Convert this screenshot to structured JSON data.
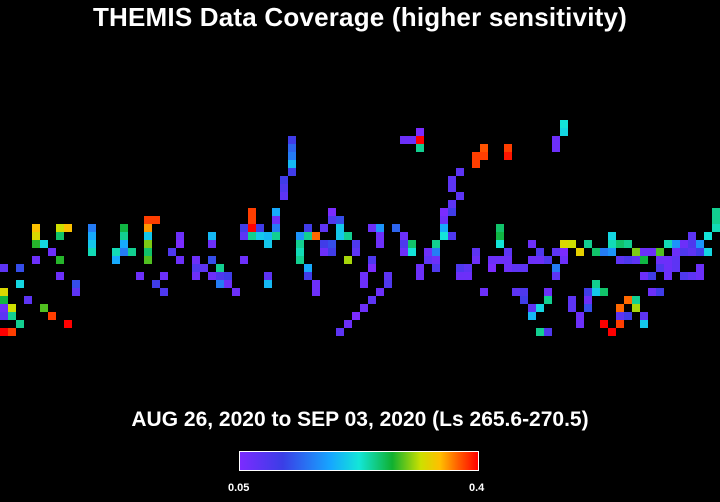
{
  "chart_data": {
    "type": "heatmap",
    "title": "THEMIS Data Coverage (higher sensitivity)",
    "subtitle": "AUG 26, 2020 to SEP 03, 2020 (Ls 265.6-270.5)",
    "colorbar": {
      "min_label": "0.05",
      "max_label": "0.4",
      "range": [
        0.05,
        0.4
      ],
      "colors": [
        "#7b2bff",
        "#3a3ee6",
        "#16a6ff",
        "#13e6d8",
        "#10b030",
        "#cde000",
        "#ffbf00",
        "#ff5a00",
        "#ff0000"
      ]
    },
    "grid": {
      "columns": 90,
      "rows": 50
    },
    "cells": [
      [
        0,
        38,
        0.06
      ],
      [
        0,
        39,
        0.07
      ],
      [
        0,
        37,
        0.22
      ],
      [
        0,
        36,
        0.28
      ],
      [
        0,
        33,
        0.07
      ],
      [
        0,
        41,
        0.4
      ],
      [
        1,
        41,
        0.37
      ],
      [
        1,
        39,
        0.2
      ],
      [
        1,
        38,
        0.27
      ],
      [
        2,
        40,
        0.2
      ],
      [
        2,
        35,
        0.17
      ],
      [
        2,
        33,
        0.1
      ],
      [
        3,
        37,
        0.07
      ],
      [
        4,
        29,
        0.28
      ],
      [
        4,
        30,
        0.23
      ],
      [
        4,
        28,
        0.31
      ],
      [
        4,
        32,
        0.06
      ],
      [
        5,
        30,
        0.17
      ],
      [
        5,
        38,
        0.24
      ],
      [
        6,
        39,
        0.37
      ],
      [
        6,
        31,
        0.06
      ],
      [
        7,
        32,
        0.23
      ],
      [
        7,
        34,
        0.06
      ],
      [
        7,
        28,
        0.27
      ],
      [
        7,
        29,
        0.21
      ],
      [
        8,
        28,
        0.31
      ],
      [
        8,
        40,
        0.4
      ],
      [
        9,
        35,
        0.1
      ],
      [
        9,
        36,
        0.07
      ],
      [
        11,
        28,
        0.12
      ],
      [
        11,
        29,
        0.14
      ],
      [
        11,
        30,
        0.16
      ],
      [
        11,
        31,
        0.19
      ],
      [
        14,
        32,
        0.14
      ],
      [
        14,
        31,
        0.19
      ],
      [
        15,
        31,
        0.12
      ],
      [
        15,
        30,
        0.14
      ],
      [
        15,
        29,
        0.2
      ],
      [
        15,
        28,
        0.22
      ],
      [
        16,
        31,
        0.2
      ],
      [
        17,
        34,
        0.06
      ],
      [
        18,
        28,
        0.33
      ],
      [
        18,
        29,
        0.16
      ],
      [
        18,
        30,
        0.25
      ],
      [
        18,
        31,
        0.21
      ],
      [
        18,
        32,
        0.24
      ],
      [
        18,
        27,
        0.37
      ],
      [
        19,
        27,
        0.37
      ],
      [
        19,
        35,
        0.09
      ],
      [
        20,
        36,
        0.08
      ],
      [
        20,
        34,
        0.06
      ],
      [
        21,
        31,
        0.08
      ],
      [
        22,
        29,
        0.06
      ],
      [
        22,
        30,
        0.05
      ],
      [
        22,
        32,
        0.06
      ],
      [
        24,
        32,
        0.06
      ],
      [
        24,
        33,
        0.08
      ],
      [
        24,
        34,
        0.06
      ],
      [
        25,
        33,
        0.07
      ],
      [
        26,
        34,
        0.06
      ],
      [
        26,
        32,
        0.1
      ],
      [
        26,
        30,
        0.06
      ],
      [
        26,
        29,
        0.15
      ],
      [
        27,
        35,
        0.12
      ],
      [
        27,
        34,
        0.08
      ],
      [
        27,
        33,
        0.2
      ],
      [
        28,
        35,
        0.06
      ],
      [
        28,
        34,
        0.09
      ],
      [
        29,
        36,
        0.06
      ],
      [
        30,
        28,
        0.09
      ],
      [
        30,
        29,
        0.07
      ],
      [
        30,
        32,
        0.06
      ],
      [
        31,
        26,
        0.37
      ],
      [
        31,
        27,
        0.37
      ],
      [
        31,
        28,
        0.41
      ],
      [
        31,
        29,
        0.2
      ],
      [
        32,
        28,
        0.09
      ],
      [
        32,
        29,
        0.16
      ],
      [
        33,
        29,
        0.15
      ],
      [
        33,
        30,
        0.16
      ],
      [
        33,
        34,
        0.07
      ],
      [
        33,
        35,
        0.15
      ],
      [
        34,
        28,
        0.12
      ],
      [
        34,
        27,
        0.06
      ],
      [
        34,
        26,
        0.14
      ],
      [
        34,
        29,
        0.2
      ],
      [
        35,
        24,
        0.07
      ],
      [
        35,
        23,
        0.08
      ],
      [
        35,
        22,
        0.09
      ],
      [
        36,
        21,
        0.09
      ],
      [
        36,
        20,
        0.15
      ],
      [
        36,
        19,
        0.12
      ],
      [
        36,
        18,
        0.11
      ],
      [
        36,
        17,
        0.09
      ],
      [
        37,
        32,
        0.2
      ],
      [
        37,
        31,
        0.19
      ],
      [
        37,
        30,
        0.06
      ],
      [
        37,
        29,
        0.13
      ],
      [
        38,
        28,
        0.09
      ],
      [
        38,
        33,
        0.14
      ],
      [
        38,
        34,
        0.09
      ],
      [
        39,
        36,
        0.06
      ],
      [
        39,
        35,
        0.06
      ],
      [
        40,
        30,
        0.09
      ],
      [
        40,
        31,
        0.06
      ],
      [
        41,
        31,
        0.09
      ],
      [
        41,
        30,
        0.1
      ],
      [
        41,
        26,
        0.05
      ],
      [
        42,
        28,
        0.16
      ],
      [
        42,
        29,
        0.16
      ],
      [
        43,
        29,
        0.2
      ],
      [
        43,
        32,
        0.26
      ],
      [
        44,
        31,
        0.07
      ],
      [
        44,
        30,
        0.08
      ],
      [
        45,
        34,
        0.06
      ],
      [
        45,
        35,
        0.06
      ],
      [
        46,
        33,
        0.05
      ],
      [
        46,
        32,
        0.08
      ],
      [
        46,
        28,
        0.06
      ],
      [
        47,
        28,
        0.13
      ],
      [
        47,
        29,
        0.06
      ],
      [
        47,
        30,
        0.06
      ],
      [
        48,
        34,
        0.07
      ],
      [
        48,
        35,
        0.08
      ],
      [
        49,
        28,
        0.11
      ],
      [
        50,
        29,
        0.06
      ],
      [
        50,
        30,
        0.08
      ],
      [
        50,
        31,
        0.06
      ],
      [
        51,
        30,
        0.21
      ],
      [
        51,
        31,
        0.18
      ],
      [
        52,
        34,
        0.06
      ],
      [
        52,
        33,
        0.06
      ],
      [
        53,
        31,
        0.06
      ],
      [
        53,
        32,
        0.07
      ],
      [
        54,
        32,
        0.06
      ],
      [
        54,
        33,
        0.08
      ],
      [
        54,
        30,
        0.2
      ],
      [
        54,
        31,
        0.12
      ],
      [
        55,
        29,
        0.18
      ],
      [
        55,
        28,
        0.14
      ],
      [
        55,
        27,
        0.06
      ],
      [
        55,
        26,
        0.05
      ],
      [
        56,
        26,
        0.09
      ],
      [
        56,
        29,
        0.08
      ],
      [
        56,
        25,
        0.07
      ],
      [
        57,
        24,
        0.07
      ],
      [
        57,
        33,
        0.08
      ],
      [
        57,
        34,
        0.06
      ],
      [
        58,
        34,
        0.06
      ],
      [
        58,
        33,
        0.07
      ],
      [
        59,
        31,
        0.07
      ],
      [
        59,
        32,
        0.06
      ],
      [
        60,
        36,
        0.06
      ],
      [
        61,
        33,
        0.05
      ],
      [
        61,
        32,
        0.06
      ],
      [
        62,
        30,
        0.18
      ],
      [
        62,
        29,
        0.22
      ],
      [
        62,
        28,
        0.21
      ],
      [
        63,
        31,
        0.07
      ],
      [
        63,
        32,
        0.06
      ],
      [
        64,
        36,
        0.07
      ],
      [
        65,
        36,
        0.08
      ],
      [
        65,
        37,
        0.09
      ],
      [
        66,
        38,
        0.07
      ],
      [
        66,
        39,
        0.15
      ],
      [
        67,
        38,
        0.17
      ],
      [
        67,
        41,
        0.2
      ],
      [
        68,
        41,
        0.08
      ],
      [
        68,
        37,
        0.2
      ],
      [
        68,
        36,
        0.06
      ],
      [
        69,
        34,
        0.07
      ],
      [
        69,
        33,
        0.12
      ],
      [
        70,
        32,
        0.06
      ],
      [
        70,
        31,
        0.05
      ],
      [
        71,
        37,
        0.07
      ],
      [
        71,
        38,
        0.07
      ],
      [
        72,
        39,
        0.06
      ],
      [
        72,
        40,
        0.06
      ],
      [
        73,
        38,
        0.1
      ],
      [
        73,
        37,
        0.06
      ],
      [
        73,
        36,
        0.09
      ],
      [
        74,
        35,
        0.2
      ],
      [
        74,
        36,
        0.16
      ],
      [
        75,
        36,
        0.21
      ],
      [
        75,
        40,
        0.4
      ],
      [
        76,
        41,
        0.4
      ],
      [
        77,
        40,
        0.37
      ],
      [
        77,
        38,
        0.35
      ],
      [
        77,
        39,
        0.07
      ],
      [
        78,
        39,
        0.09
      ],
      [
        78,
        37,
        0.35
      ],
      [
        79,
        38,
        0.26
      ],
      [
        79,
        37,
        0.2
      ],
      [
        80,
        39,
        0.07
      ],
      [
        80,
        40,
        0.16
      ],
      [
        80,
        34,
        0.06
      ],
      [
        81,
        34,
        0.09
      ],
      [
        81,
        36,
        0.06
      ],
      [
        82,
        36,
        0.09
      ],
      [
        82,
        33,
        0.08
      ],
      [
        83,
        33,
        0.07
      ],
      [
        83,
        34,
        0.06
      ],
      [
        84,
        32,
        0.07
      ],
      [
        84,
        31,
        0.06
      ],
      [
        85,
        31,
        0.07
      ],
      [
        85,
        30,
        0.06
      ],
      [
        86,
        30,
        0.08
      ],
      [
        86,
        29,
        0.07
      ],
      [
        87,
        30,
        0.13
      ],
      [
        87,
        31,
        0.09
      ],
      [
        88,
        31,
        0.17
      ],
      [
        88,
        29,
        0.18
      ],
      [
        89,
        28,
        0.19
      ],
      [
        89,
        27,
        0.2
      ],
      [
        89,
        26,
        0.2
      ],
      [
        42,
        41,
        0.07
      ],
      [
        43,
        40,
        0.06
      ],
      [
        44,
        39,
        0.05
      ],
      [
        45,
        38,
        0.06
      ],
      [
        46,
        37,
        0.07
      ],
      [
        47,
        36,
        0.06
      ],
      [
        37,
        30,
        0.2
      ],
      [
        38,
        29,
        0.2
      ],
      [
        39,
        29,
        0.35
      ],
      [
        40,
        28,
        0.07
      ],
      [
        41,
        27,
        0.08
      ],
      [
        42,
        27,
        0.1
      ],
      [
        56,
        23,
        0.07
      ],
      [
        56,
        22,
        0.07
      ],
      [
        57,
        21,
        0.07
      ],
      [
        50,
        17,
        0.06
      ],
      [
        51,
        17,
        0.06
      ],
      [
        52,
        16,
        0.05
      ],
      [
        59,
        19,
        0.37
      ],
      [
        59,
        20,
        0.37
      ],
      [
        60,
        18,
        0.36
      ],
      [
        60,
        19,
        0.37
      ],
      [
        63,
        18,
        0.37
      ],
      [
        63,
        19,
        0.39
      ],
      [
        52,
        17,
        0.4
      ],
      [
        52,
        18,
        0.2
      ],
      [
        70,
        15,
        0.18
      ],
      [
        70,
        16,
        0.17
      ],
      [
        69,
        17,
        0.06
      ],
      [
        69,
        18,
        0.06
      ],
      [
        83,
        33,
        0.06
      ],
      [
        84,
        33,
        0.07
      ],
      [
        85,
        34,
        0.08
      ],
      [
        86,
        34,
        0.07
      ],
      [
        87,
        34,
        0.06
      ],
      [
        87,
        33,
        0.06
      ],
      [
        76,
        30,
        0.19
      ],
      [
        76,
        29,
        0.17
      ],
      [
        77,
        30,
        0.21
      ],
      [
        78,
        30,
        0.2
      ],
      [
        79,
        31,
        0.25
      ],
      [
        80,
        32,
        0.22
      ],
      [
        81,
        31,
        0.2
      ],
      [
        82,
        31,
        0.24
      ],
      [
        83,
        30,
        0.19
      ],
      [
        84,
        30,
        0.13
      ],
      [
        85,
        31,
        0.08
      ],
      [
        86,
        31,
        0.07
      ],
      [
        66,
        30,
        0.06
      ],
      [
        67,
        31,
        0.08
      ],
      [
        68,
        32,
        0.08
      ],
      [
        69,
        31,
        0.07
      ],
      [
        70,
        30,
        0.28
      ],
      [
        71,
        30,
        0.27
      ],
      [
        72,
        31,
        0.29
      ],
      [
        73,
        30,
        0.2
      ],
      [
        74,
        31,
        0.21
      ],
      [
        75,
        31,
        0.12
      ],
      [
        76,
        31,
        0.13
      ],
      [
        77,
        32,
        0.07
      ],
      [
        78,
        32,
        0.08
      ],
      [
        79,
        32,
        0.07
      ],
      [
        80,
        31,
        0.06
      ],
      [
        81,
        31,
        0.06
      ],
      [
        82,
        32,
        0.06
      ],
      [
        83,
        32,
        0.06
      ],
      [
        62,
        32,
        0.06
      ],
      [
        63,
        33,
        0.06
      ],
      [
        64,
        33,
        0.07
      ],
      [
        65,
        33,
        0.07
      ],
      [
        66,
        32,
        0.06
      ],
      [
        67,
        32,
        0.06
      ]
    ]
  }
}
